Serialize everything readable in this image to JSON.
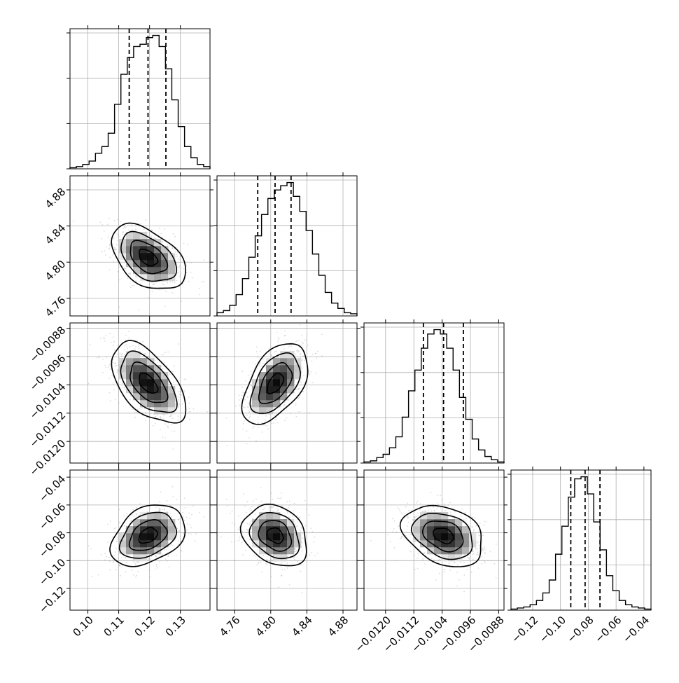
{
  "chart_data": {
    "type": "corner",
    "parameters": [
      {
        "range": [
          0.0942,
          0.1396
        ],
        "ticks": [
          0.1,
          0.11,
          0.12,
          0.13
        ],
        "tick_labels": [
          "0.10",
          "0.11",
          "0.12",
          "0.13"
        ],
        "quantiles": [
          0.1134,
          0.1195,
          0.1253
        ],
        "mean": 0.1195,
        "sd": 0.006,
        "hist_counts": [
          1,
          2,
          4,
          7,
          14,
          20,
          32,
          58,
          85,
          100,
          110,
          112,
          118,
          120,
          110,
          90,
          62,
          38,
          20,
          10,
          4,
          2
        ]
      },
      {
        "range": [
          4.7405,
          4.8955
        ],
        "ticks": [
          4.76,
          4.8,
          4.84,
          4.88
        ],
        "tick_labels": [
          "4.76",
          "4.80",
          "4.84",
          "4.88"
        ],
        "quantiles": [
          4.7856,
          4.8048,
          4.8225
        ],
        "mean": 4.805,
        "sd": 0.018,
        "hist_counts": [
          3,
          5,
          10,
          20,
          35,
          55,
          75,
          95,
          110,
          118,
          122,
          125,
          112,
          98,
          80,
          58,
          38,
          22,
          12,
          7,
          3,
          2
        ]
      },
      {
        "range": [
          -0.01261,
          -0.00865
        ],
        "ticks": [
          -0.012,
          -0.0112,
          -0.0104,
          -0.0096,
          -0.0088
        ],
        "tick_labels": [
          "−0.0120",
          "−0.0112",
          "−0.0104",
          "−0.0096",
          "−0.0088"
        ],
        "quantiles": [
          -0.01093,
          -0.01036,
          -0.0098
        ],
        "mean": -0.01036,
        "sd": 0.00057,
        "hist_counts": [
          1,
          2,
          5,
          8,
          14,
          24,
          42,
          66,
          85,
          105,
          118,
          122,
          118,
          105,
          85,
          60,
          40,
          22,
          12,
          6,
          3,
          1
        ]
      },
      {
        "range": [
          -0.1356,
          -0.0349
        ],
        "ticks": [
          -0.12,
          -0.1,
          -0.08,
          -0.06,
          -0.04
        ],
        "tick_labels": [
          "−0.12",
          "−0.10",
          "−0.08",
          "−0.06",
          "−0.04"
        ],
        "quantiles": [
          -0.0926,
          -0.0823,
          -0.0716
        ],
        "mean": -0.082,
        "sd": 0.011,
        "hist_counts": [
          1,
          2,
          3,
          5,
          9,
          16,
          28,
          52,
          78,
          105,
          122,
          124,
          108,
          82,
          56,
          32,
          18,
          9,
          5,
          3,
          2,
          1
        ]
      }
    ],
    "correlations": [
      [
        1.0,
        -0.45,
        -0.55,
        0.35
      ],
      [
        -0.45,
        1.0,
        0.5,
        -0.25
      ],
      [
        -0.55,
        0.5,
        1.0,
        -0.3
      ],
      [
        0.35,
        -0.25,
        -0.3,
        1.0
      ]
    ],
    "grid": true,
    "quantile_style": "dashed",
    "sample_color": "#9a9a9a",
    "contour_color": "#000000"
  }
}
